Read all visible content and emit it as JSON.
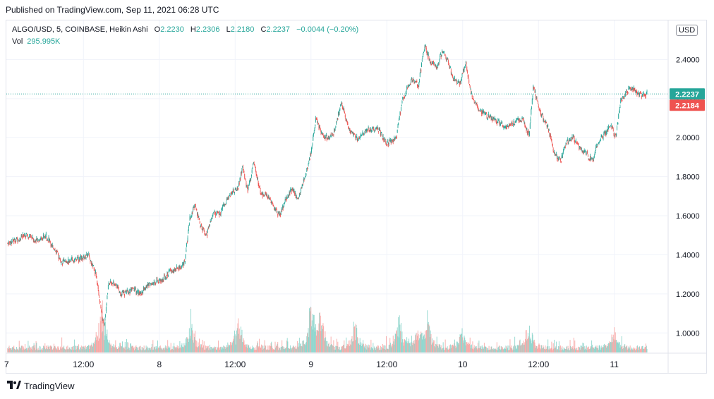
{
  "header": {
    "published": "Published on TradingView.com, Sep 11, 2021 06:28 UTC"
  },
  "legend": {
    "symbol": "ALGO/USD, 5, COINBASE, Heikin Ashi",
    "o_label": "O",
    "o_value": "2.2230",
    "h_label": "H",
    "h_value": "2.2306",
    "l_label": "L",
    "l_value": "2.2180",
    "c_label": "C",
    "c_value": "2.2237",
    "change": "−0.0044 (−0.20%)",
    "vol_label": "Vol",
    "vol_value": "295.995K"
  },
  "currency": "USD",
  "colors": {
    "up": "#26a69a",
    "down": "#ef5350",
    "up_vol": "#8fd6cd",
    "down_vol": "#f7a9a7",
    "grid": "#f0f3fa"
  },
  "footer": {
    "brand": "TradingView",
    "logo_icon": "tradingview-logo-icon"
  },
  "chart_data": {
    "type": "candlestick",
    "style": "Heikin Ashi",
    "interval": "5",
    "exchange": "COINBASE",
    "symbol": "ALGO/USD",
    "y_ticks": [
      "1.0000",
      "1.2000",
      "1.4000",
      "1.6000",
      "1.8000",
      "2.0000",
      "2.2000",
      "2.4000"
    ],
    "ylim": [
      0.9,
      2.6
    ],
    "x_ticks": [
      {
        "label": "12:00",
        "x": 12
      },
      {
        "label": "8",
        "x": 24
      },
      {
        "label": "12:00",
        "x": 36
      },
      {
        "label": "9",
        "x": 48
      },
      {
        "label": "12:00",
        "x": 60
      },
      {
        "label": "10",
        "x": 72
      },
      {
        "label": "12:00",
        "x": 84
      },
      {
        "label": "11",
        "x": 96
      }
    ],
    "x_ticks_partial": [
      "7"
    ],
    "xlim": [
      -0.2,
      104.4
    ],
    "x_unit": "hours since Sep 7 00:00 UTC",
    "path": [
      [
        0,
        1.46
      ],
      [
        1.5,
        1.48
      ],
      [
        3,
        1.5
      ],
      [
        4.5,
        1.47
      ],
      [
        6,
        1.5
      ],
      [
        7.5,
        1.43
      ],
      [
        8.5,
        1.36
      ],
      [
        10,
        1.37
      ],
      [
        11.5,
        1.38
      ],
      [
        12.8,
        1.4
      ],
      [
        14,
        1.3
      ],
      [
        15,
        1.07
      ],
      [
        15.3,
        1.04
      ],
      [
        16,
        1.26
      ],
      [
        17,
        1.25
      ],
      [
        18,
        1.2
      ],
      [
        19,
        1.21
      ],
      [
        20,
        1.22
      ],
      [
        21,
        1.2
      ],
      [
        22,
        1.24
      ],
      [
        23,
        1.26
      ],
      [
        24.5,
        1.27
      ],
      [
        25.5,
        1.31
      ],
      [
        27,
        1.33
      ],
      [
        28,
        1.36
      ],
      [
        28.8,
        1.58
      ],
      [
        29.6,
        1.66
      ],
      [
        30.5,
        1.55
      ],
      [
        31.5,
        1.5
      ],
      [
        32.5,
        1.62
      ],
      [
        33.5,
        1.6
      ],
      [
        35,
        1.7
      ],
      [
        36.5,
        1.75
      ],
      [
        37.2,
        1.85
      ],
      [
        38,
        1.73
      ],
      [
        39,
        1.88
      ],
      [
        40,
        1.72
      ],
      [
        41,
        1.7
      ],
      [
        42,
        1.65
      ],
      [
        43,
        1.6
      ],
      [
        44,
        1.68
      ],
      [
        45,
        1.74
      ],
      [
        46,
        1.68
      ],
      [
        47,
        1.8
      ],
      [
        48,
        1.92
      ],
      [
        48.8,
        2.1
      ],
      [
        50,
        2.0
      ],
      [
        51.5,
        2.01
      ],
      [
        52.8,
        2.18
      ],
      [
        54,
        2.04
      ],
      [
        55.5,
        1.99
      ],
      [
        57,
        2.04
      ],
      [
        58.5,
        2.05
      ],
      [
        60,
        1.97
      ],
      [
        61.5,
        2.0
      ],
      [
        62.5,
        2.2
      ],
      [
        64,
        2.3
      ],
      [
        65,
        2.27
      ],
      [
        66,
        2.47
      ],
      [
        67,
        2.38
      ],
      [
        68,
        2.36
      ],
      [
        68.8,
        2.45
      ],
      [
        69.6,
        2.4
      ],
      [
        70.5,
        2.3
      ],
      [
        71.5,
        2.27
      ],
      [
        72.5,
        2.38
      ],
      [
        73.5,
        2.2
      ],
      [
        74.5,
        2.15
      ],
      [
        75.5,
        2.12
      ],
      [
        76.5,
        2.1
      ],
      [
        77.5,
        2.08
      ],
      [
        79,
        2.05
      ],
      [
        80.5,
        2.08
      ],
      [
        81.5,
        2.1
      ],
      [
        82.5,
        2.01
      ],
      [
        83.2,
        2.27
      ],
      [
        84,
        2.15
      ],
      [
        85.5,
        2.05
      ],
      [
        86.5,
        1.92
      ],
      [
        87.5,
        1.88
      ],
      [
        88.5,
        1.98
      ],
      [
        89.5,
        2.0
      ],
      [
        90.5,
        1.95
      ],
      [
        91.5,
        1.92
      ],
      [
        92.5,
        1.88
      ],
      [
        93.5,
        1.98
      ],
      [
        94.5,
        2.02
      ],
      [
        95.5,
        2.06
      ],
      [
        96.2,
        2.0
      ],
      [
        97,
        2.18
      ],
      [
        98,
        2.24
      ],
      [
        99,
        2.25
      ],
      [
        100,
        2.22
      ],
      [
        101.2,
        2.2237
      ]
    ],
    "volume_spikes": [
      [
        15,
        0.55
      ],
      [
        29,
        0.33
      ],
      [
        36.5,
        0.42
      ],
      [
        48,
        0.6
      ],
      [
        49.5,
        0.45
      ],
      [
        55,
        0.3
      ],
      [
        62,
        0.38
      ],
      [
        65,
        0.25
      ],
      [
        66.5,
        0.36
      ],
      [
        72,
        0.25
      ],
      [
        82.5,
        0.3
      ],
      [
        96,
        0.22
      ]
    ],
    "current_price": "2.2237",
    "last_close_label": "2.2184"
  }
}
